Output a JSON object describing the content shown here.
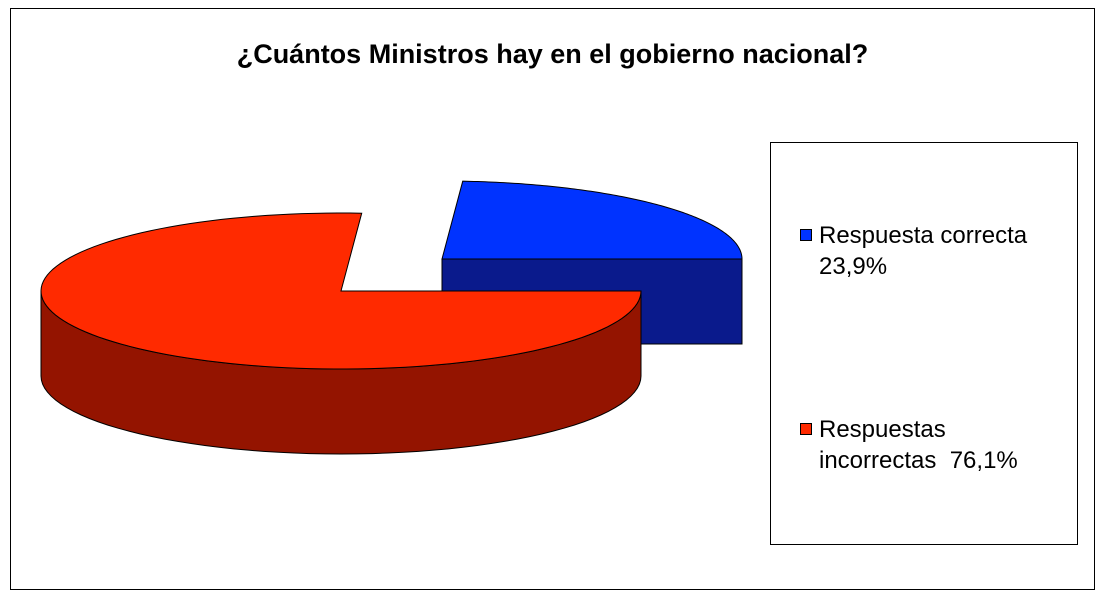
{
  "chart_data": {
    "type": "pie",
    "title": "¿Cuántos Ministros hay en el gobierno nacional?",
    "legend_position": "right",
    "slices": [
      {
        "label": "Respuesta correcta",
        "value": 23.9,
        "value_label": "23,9%",
        "color": "#0033ff",
        "side_color": "#0a1a8c"
      },
      {
        "label": "Respuestas incorrectas",
        "value": 76.1,
        "value_label": "76,1%",
        "color": "#ff2a00",
        "side_color": "#941400"
      }
    ],
    "legend": [
      {
        "line1": "Respuesta correcta",
        "line2": "23,9%"
      },
      {
        "line1": "Respuestas",
        "line2": "incorrectas  76,1%"
      }
    ]
  }
}
